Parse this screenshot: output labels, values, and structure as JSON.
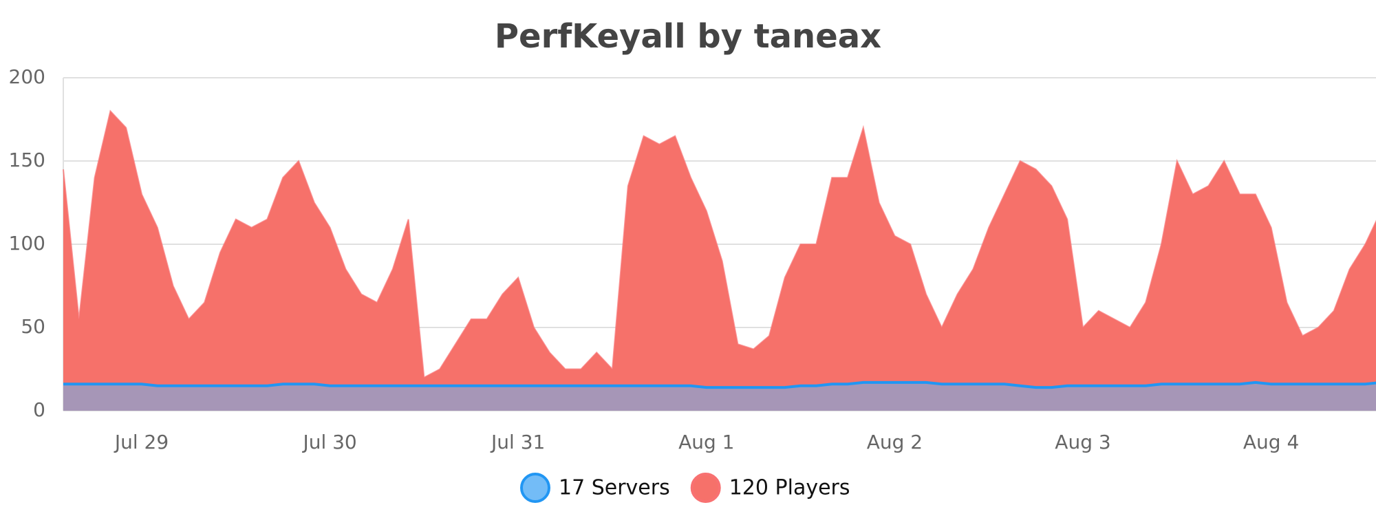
{
  "chart_data": {
    "type": "area",
    "title": "PerfKeyall by taneax",
    "categories": [
      null,
      null,
      null,
      null,
      null,
      "Jul 29",
      null,
      null,
      null,
      null,
      null,
      null,
      null,
      null,
      null,
      null,
      null,
      "Jul 30",
      null,
      null,
      null,
      null,
      null,
      null,
      null,
      null,
      null,
      null,
      null,
      "Jul 31",
      null,
      null,
      null,
      null,
      null,
      null,
      null,
      null,
      null,
      null,
      null,
      "Aug 1",
      null,
      null,
      null,
      null,
      null,
      null,
      null,
      null,
      null,
      null,
      null,
      "Aug 2",
      null,
      null,
      null,
      null,
      null,
      null,
      null,
      null,
      null,
      null,
      null,
      "Aug 3",
      null,
      null,
      null,
      null,
      null,
      null,
      null,
      null,
      null,
      null,
      null,
      "Aug 4",
      null,
      null,
      null,
      null,
      null,
      null,
      null
    ],
    "series": [
      {
        "name": "17 Servers",
        "color": "#2196f3",
        "fill": "#64b5f6",
        "values": [
          16,
          16,
          16,
          16,
          16,
          16,
          15,
          15,
          15,
          15,
          15,
          15,
          15,
          15,
          16,
          16,
          16,
          15,
          15,
          15,
          15,
          15,
          15,
          15,
          15,
          15,
          15,
          15,
          15,
          15,
          15,
          15,
          15,
          15,
          15,
          15,
          15,
          15,
          15,
          15,
          15,
          14,
          14,
          14,
          14,
          14,
          14,
          15,
          15,
          16,
          16,
          17,
          17,
          17,
          17,
          17,
          16,
          16,
          16,
          16,
          16,
          15,
          14,
          14,
          15,
          15,
          15,
          15,
          15,
          15,
          16,
          16,
          16,
          16,
          16,
          16,
          17,
          16,
          16,
          16,
          16,
          16,
          16,
          16,
          17
        ]
      },
      {
        "name": "120 Players",
        "color": "#f87171",
        "fill": "#f6716a",
        "values": [
          145,
          55,
          140,
          180,
          170,
          130,
          110,
          75,
          55,
          65,
          95,
          115,
          110,
          115,
          140,
          150,
          125,
          110,
          85,
          70,
          65,
          85,
          115,
          20,
          25,
          40,
          55,
          55,
          70,
          80,
          50,
          35,
          25,
          25,
          35,
          25,
          135,
          165,
          160,
          165,
          140,
          120,
          90,
          40,
          37,
          45,
          80,
          100,
          100,
          140,
          140,
          170,
          125,
          105,
          100,
          70,
          50,
          70,
          85,
          110,
          130,
          150,
          145,
          135,
          115,
          50,
          60,
          55,
          50,
          65,
          100,
          150,
          130,
          135,
          150,
          130,
          130,
          110,
          65,
          45,
          50,
          60,
          85,
          100,
          120
        ]
      }
    ],
    "ylim": [
      0,
      200
    ],
    "yticks": [
      0,
      50,
      100,
      150,
      200
    ],
    "grid": true,
    "legend": "bottom"
  }
}
